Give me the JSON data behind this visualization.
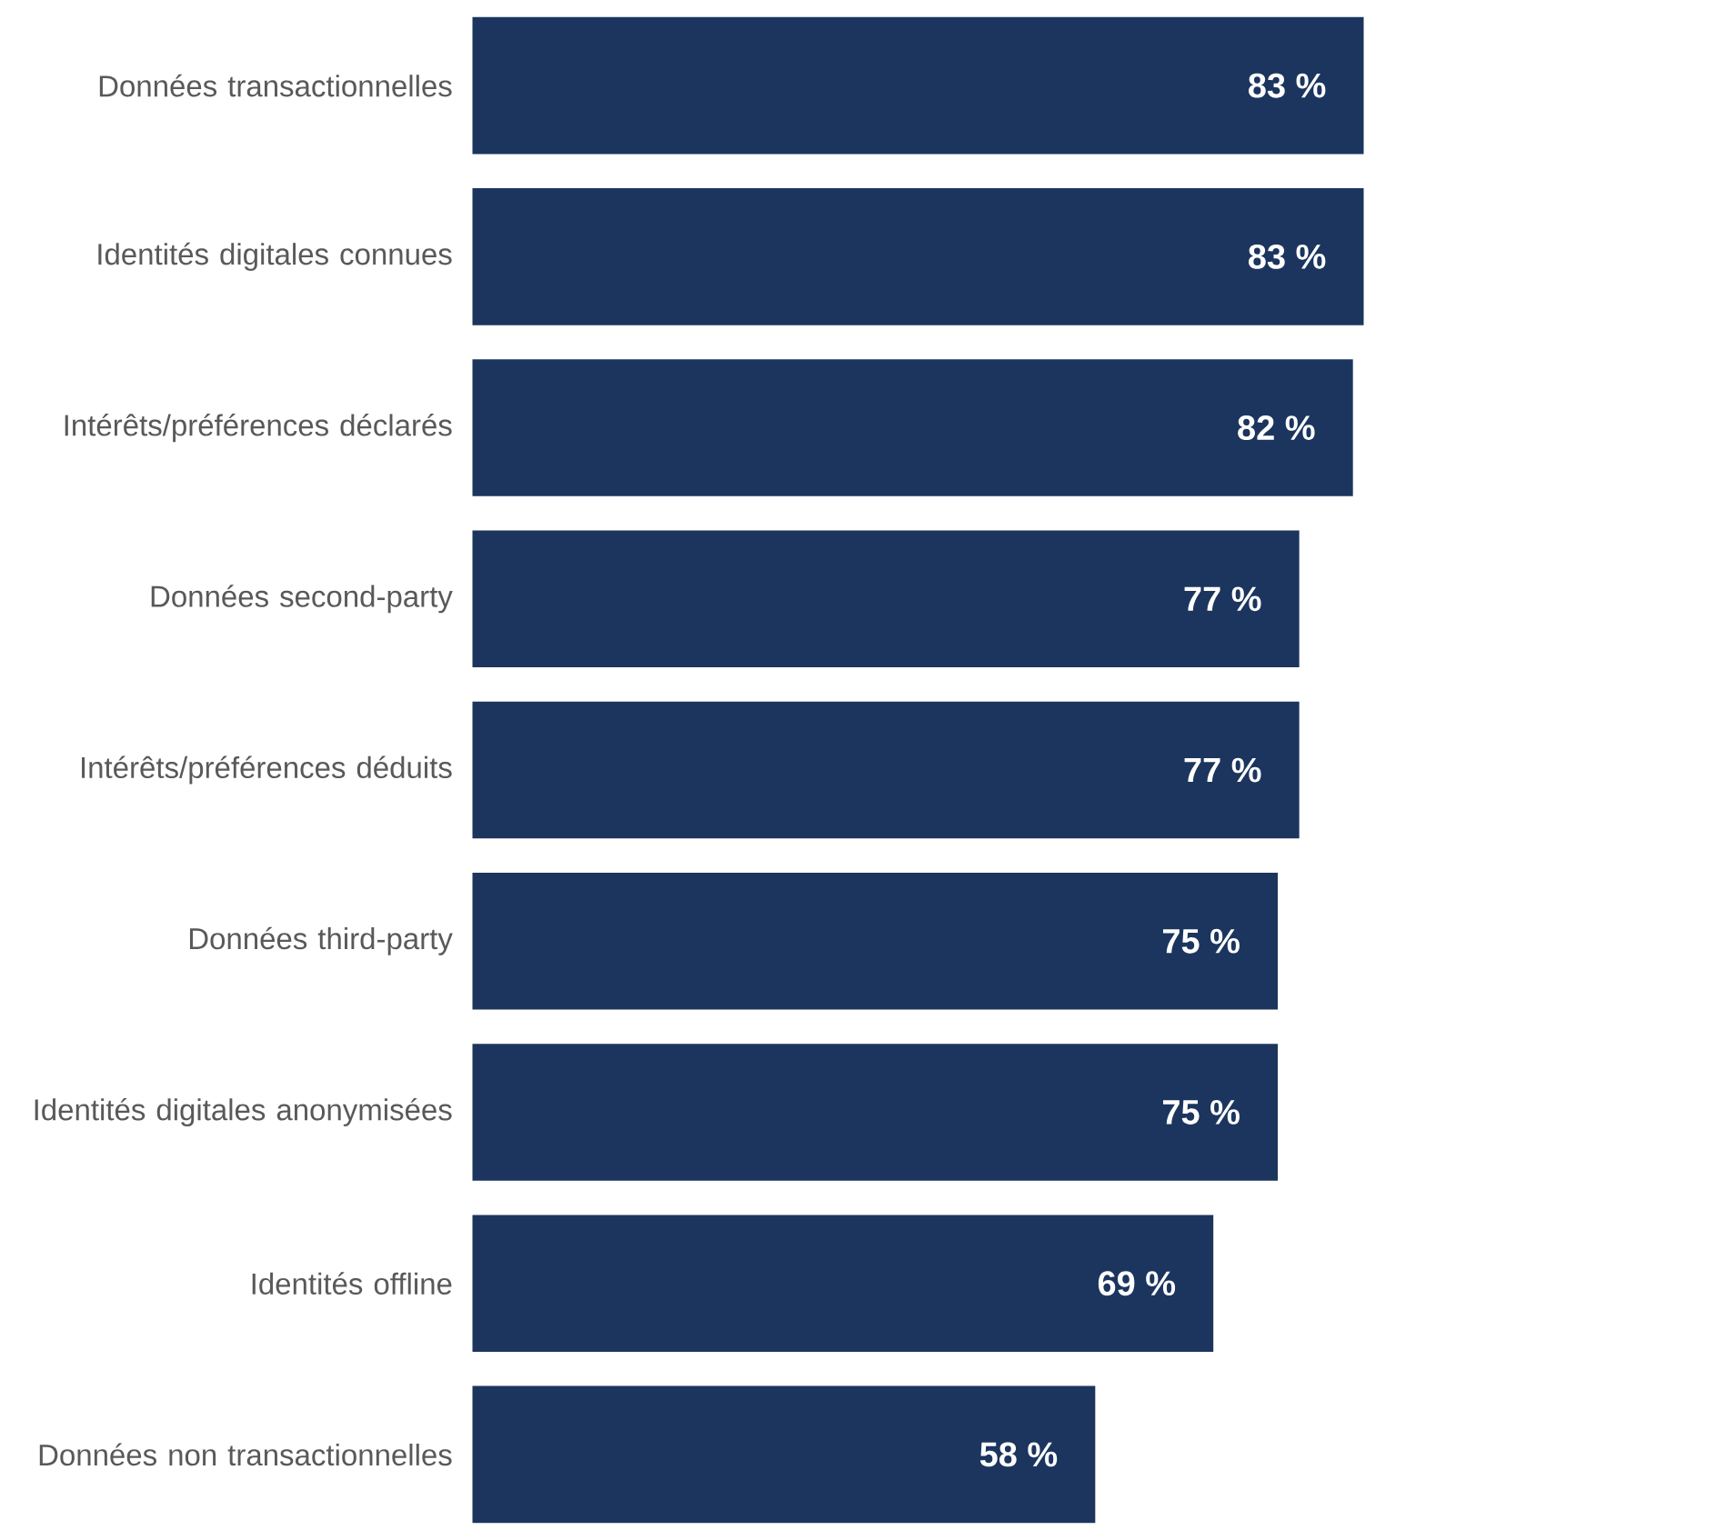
{
  "chart_data": {
    "type": "bar",
    "orientation": "horizontal",
    "categories": [
      "Données transactionnelles",
      "Identités digitales connues",
      "Intérêts/préférences déclarés",
      "Données second-party",
      "Intérêts/préférences déduits",
      "Données third-party",
      "Identités digitales anonymisées",
      "Identités offline",
      "Données non transactionnelles"
    ],
    "values": [
      83,
      83,
      82,
      77,
      77,
      75,
      75,
      69,
      58
    ],
    "value_labels": [
      "83 %",
      "83 %",
      "82 %",
      "77 %",
      "77 %",
      "75 %",
      "75 %",
      "69 %",
      "58 %"
    ],
    "color": "#1c355e"
  }
}
